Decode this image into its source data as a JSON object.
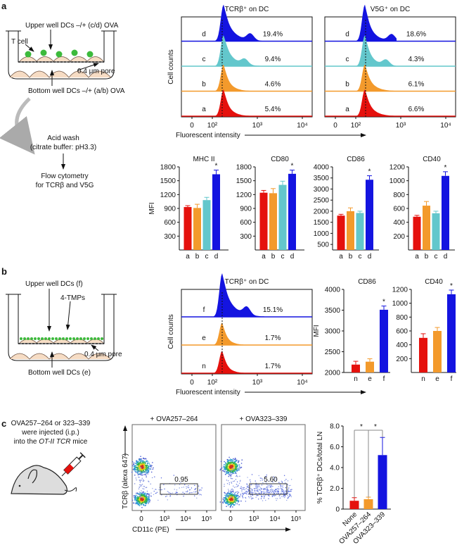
{
  "panel_labels": [
    "a",
    "b",
    "c"
  ],
  "schematic_a": {
    "upper": "Upper well DCs –/+ (c/d) OVA",
    "tcell": "T cell",
    "pore": "0.4 μm pore",
    "bottom": "Bottom well DCs –/+ (a/b) OVA",
    "wash1": "Acid wash",
    "wash2": "(citrate buffer: pH3.3)",
    "flow1": "Flow cytometry",
    "flow2": "for TCRβ and V5G"
  },
  "schematic_b": {
    "upper": "Upper well DCs (f)",
    "tmps": "4-TMPs",
    "pore": "0.4 μm pore",
    "bottom": "Bottom well DCs (e)"
  },
  "schematic_c": {
    "line1": "OVA257–264 or 323–339",
    "line2": "were injected (i.p.)",
    "line3a": "into the ",
    "line3b": "OT-II TCR",
    "line3c": " mice"
  },
  "colors": {
    "a": "#e5110d",
    "b": "#f39a2c",
    "c": "#63c7cc",
    "d": "#1414e0",
    "n": "#e5110d",
    "e": "#f39a2c",
    "f": "#1414e0",
    "axis": "#111111"
  },
  "chart_data": [
    {
      "id": "hist-a-tcr",
      "type": "histogram",
      "title": "TCRβ⁺ on DC",
      "ylabel": "Cell counts",
      "xlabel": "Fluorescent intensity",
      "xticks": [
        "0",
        "10²",
        "10³",
        "10⁴"
      ],
      "rows": [
        {
          "label": "d",
          "percent": "19.4%"
        },
        {
          "label": "c",
          "percent": "9.4%"
        },
        {
          "label": "b",
          "percent": "4.6%"
        },
        {
          "label": "a",
          "percent": "5.4%"
        }
      ]
    },
    {
      "id": "hist-a-v5g",
      "type": "histogram",
      "title": "V5G⁺ on DC",
      "ylabel": "",
      "xlabel": "",
      "xticks": [
        "0",
        "10²",
        "10³",
        "10⁴"
      ],
      "rows": [
        {
          "label": "d",
          "percent": "18.6%"
        },
        {
          "label": "c",
          "percent": "4.3%"
        },
        {
          "label": "b",
          "percent": "6.1%"
        },
        {
          "label": "a",
          "percent": "6.6%"
        }
      ]
    },
    {
      "id": "bar-a-mhcii",
      "type": "bar",
      "title": "MHC II",
      "ylabel": "MFI",
      "ylim": [
        0,
        1800
      ],
      "yticks": [
        300,
        600,
        900,
        1200,
        1500,
        1800
      ],
      "categories": [
        "a",
        "b",
        "c",
        "d"
      ],
      "values": [
        930,
        910,
        1080,
        1640
      ],
      "errors": [
        30,
        80,
        60,
        90
      ],
      "significant": [
        false,
        false,
        false,
        true
      ]
    },
    {
      "id": "bar-a-cd80",
      "type": "bar",
      "title": "CD80",
      "ylabel": "",
      "ylim": [
        0,
        1800
      ],
      "yticks": [
        300,
        600,
        900,
        1200,
        1500,
        1800
      ],
      "categories": [
        "a",
        "b",
        "c",
        "d"
      ],
      "values": [
        1240,
        1230,
        1410,
        1650
      ],
      "errors": [
        50,
        100,
        80,
        80
      ],
      "significant": [
        false,
        false,
        false,
        true
      ]
    },
    {
      "id": "bar-a-cd86",
      "type": "bar",
      "title": "CD86",
      "ylabel": "",
      "ylim": [
        250,
        4000
      ],
      "yticks": [
        500,
        1000,
        1500,
        2000,
        2500,
        3000,
        3500,
        4000
      ],
      "categories": [
        "a",
        "b",
        "c",
        "d"
      ],
      "values": [
        1800,
        2000,
        1920,
        3420
      ],
      "errors": [
        60,
        150,
        80,
        180
      ],
      "significant": [
        false,
        false,
        false,
        true
      ]
    },
    {
      "id": "bar-a-cd40",
      "type": "bar",
      "title": "CD40",
      "ylabel": "",
      "ylim": [
        0,
        1200
      ],
      "yticks": [
        200,
        400,
        600,
        800,
        1000,
        1200
      ],
      "categories": [
        "a",
        "b",
        "c",
        "d"
      ],
      "values": [
        480,
        640,
        530,
        1070
      ],
      "errors": [
        20,
        60,
        30,
        60
      ],
      "significant": [
        false,
        false,
        false,
        true
      ]
    },
    {
      "id": "hist-b-tcr",
      "type": "histogram",
      "title": "TCRβ⁺ on DC",
      "ylabel": "Cell counts",
      "xlabel": "Fluorescent intensity",
      "xticks": [
        "0",
        "10²",
        "10³",
        "10⁴"
      ],
      "rows": [
        {
          "label": "f",
          "percent": "15.1%"
        },
        {
          "label": "e",
          "percent": "1.7%"
        },
        {
          "label": "n",
          "percent": "1.7%"
        }
      ]
    },
    {
      "id": "bar-b-cd86",
      "type": "bar",
      "title": "CD86",
      "ylabel": "MFI",
      "ylim": [
        2000,
        4000
      ],
      "yticks": [
        2000,
        2500,
        3000,
        3500,
        4000
      ],
      "categories": [
        "n",
        "e",
        "f"
      ],
      "values": [
        2190,
        2260,
        3510
      ],
      "errors": [
        80,
        70,
        90
      ],
      "significant": [
        false,
        false,
        true
      ]
    },
    {
      "id": "bar-b-cd40",
      "type": "bar",
      "title": "CD40",
      "ylabel": "",
      "ylim": [
        0,
        1200
      ],
      "yticks": [
        200,
        400,
        600,
        800,
        1000,
        1200
      ],
      "categories": [
        "n",
        "e",
        "f"
      ],
      "values": [
        500,
        600,
        1130
      ],
      "errors": [
        60,
        50,
        60
      ],
      "significant": [
        false,
        false,
        true
      ]
    },
    {
      "id": "scatter-c-257",
      "type": "scatter",
      "title": "+ OVA257–264",
      "gate_value": "0.95",
      "ylabel": "TCRβ (alexa 647)",
      "xlabel": "CD11c (PE)",
      "xticks": [
        "0",
        "10³",
        "10⁴",
        "10⁵"
      ]
    },
    {
      "id": "scatter-c-323",
      "type": "scatter",
      "title": "+ OVA323–339",
      "gate_value": "5.60",
      "ylabel": "",
      "xlabel": "",
      "xticks": [
        "0",
        "10³",
        "10⁴",
        "10⁵"
      ]
    },
    {
      "id": "bar-c",
      "type": "bar",
      "title": "",
      "ylabel": "% TCRβ⁺ DCs/total LN",
      "ylim": [
        0,
        8
      ],
      "yticks": [
        "0",
        "2.0",
        "4.0",
        "6.0",
        "8.0"
      ],
      "categories": [
        "None",
        "OVA257–264",
        "OVA323–339"
      ],
      "values": [
        0.8,
        0.95,
        5.2
      ],
      "errors": [
        0.3,
        0.2,
        1.7
      ],
      "comparisons": [
        {
          "from": "None",
          "to": "OVA257–264",
          "label": "*"
        },
        {
          "from": "OVA257–264",
          "to": "OVA323–339",
          "label": "*"
        }
      ]
    }
  ]
}
